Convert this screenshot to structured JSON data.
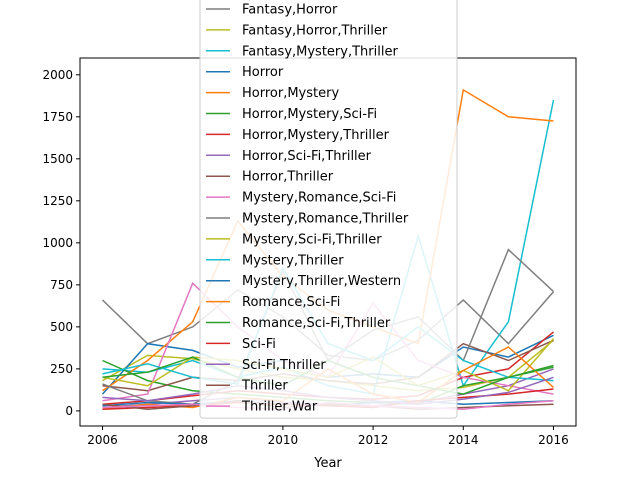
{
  "chart_data": {
    "type": "line",
    "title": "",
    "xlabel": "Year",
    "ylabel": "",
    "xlim": [
      2005.5,
      2016.5
    ],
    "ylim": [
      -90,
      2100
    ],
    "x": [
      2006,
      2007,
      2008,
      2009,
      2010,
      2011,
      2012,
      2013,
      2014,
      2015,
      2016
    ],
    "x_ticks": [
      2006,
      2008,
      2010,
      2012,
      2014,
      2016
    ],
    "y_ticks": [
      0,
      250,
      500,
      750,
      1000,
      1250,
      1500,
      1750,
      2000
    ],
    "grid": false,
    "legend_position": "upper-center",
    "series": [
      {
        "name": "Fantasy,Horror",
        "color": "#7f7f7f",
        "values": [
          660,
          400,
          500,
          720,
          560,
          330,
          300,
          420,
          660,
          400,
          710
        ]
      },
      {
        "name": "Fantasy,Horror,Thriller",
        "color": "#bcbd22",
        "values": [
          180,
          330,
          310,
          250,
          200,
          180,
          150,
          120,
          140,
          200,
          420
        ]
      },
      {
        "name": "Fantasy,Mystery,Thriller",
        "color": "#17becf",
        "values": [
          250,
          230,
          300,
          200,
          260,
          150,
          100,
          1040,
          150,
          530,
          1850
        ]
      },
      {
        "name": "Horror",
        "color": "#1f77b4",
        "values": [
          100,
          400,
          360,
          260,
          300,
          200,
          220,
          200,
          380,
          320,
          450
        ]
      },
      {
        "name": "Horror,Mystery",
        "color": "#ff7f0e",
        "values": [
          120,
          300,
          530,
          1130,
          800,
          600,
          500,
          400,
          1910,
          1750,
          1725
        ]
      },
      {
        "name": "Horror,Mystery,Sci-Fi",
        "color": "#2ca02c",
        "values": [
          300,
          180,
          120,
          100,
          80,
          60,
          50,
          40,
          150,
          200,
          260
        ]
      },
      {
        "name": "Horror,Mystery,Thriller",
        "color": "#d62728",
        "values": [
          40,
          60,
          90,
          120,
          100,
          80,
          70,
          90,
          200,
          250,
          470
        ]
      },
      {
        "name": "Horror,Sci-Fi,Thriller",
        "color": "#9467bd",
        "values": [
          20,
          40,
          60,
          80,
          50,
          40,
          30,
          50,
          100,
          150,
          250
        ]
      },
      {
        "name": "Horror,Thriller",
        "color": "#8c564b",
        "values": [
          150,
          120,
          200,
          180,
          220,
          180,
          160,
          200,
          400,
          300,
          420
        ]
      },
      {
        "name": "Mystery,Romance,Sci-Fi",
        "color": "#e377c2",
        "values": [
          60,
          100,
          760,
          500,
          300,
          200,
          640,
          300,
          200,
          150,
          100
        ]
      },
      {
        "name": "Mystery,Romance,Thriller",
        "color": "#7f7f7f",
        "values": [
          160,
          60,
          40,
          180,
          830,
          300,
          480,
          560,
          300,
          960,
          710
        ]
      },
      {
        "name": "Mystery,Sci-Fi,Thriller",
        "color": "#bcbd22",
        "values": [
          200,
          150,
          320,
          300,
          250,
          200,
          320,
          150,
          240,
          120,
          430
        ]
      },
      {
        "name": "Mystery,Thriller",
        "color": "#17becf",
        "values": [
          220,
          280,
          200,
          160,
          850,
          400,
          300,
          500,
          300,
          200,
          180
        ]
      },
      {
        "name": "Mystery,Thriller,Western",
        "color": "#1f77b4",
        "values": [
          30,
          50,
          40,
          60,
          40,
          30,
          50,
          60,
          40,
          50,
          60
        ]
      },
      {
        "name": "Romance,Sci-Fi",
        "color": "#ff7f0e",
        "values": [
          10,
          40,
          20,
          80,
          60,
          250,
          100,
          50,
          240,
          380,
          140
        ]
      },
      {
        "name": "Romance,Sci-Fi,Thriller",
        "color": "#2ca02c",
        "values": [
          200,
          230,
          320,
          200,
          150,
          300,
          200,
          150,
          100,
          200,
          270
        ]
      },
      {
        "name": "Sci-Fi",
        "color": "#d62728",
        "values": [
          10,
          20,
          30,
          50,
          40,
          30,
          20,
          60,
          80,
          100,
          130
        ]
      },
      {
        "name": "Sci-Fi,Thriller",
        "color": "#9467bd",
        "values": [
          80,
          60,
          100,
          150,
          120,
          80,
          60,
          40,
          70,
          110,
          200
        ]
      },
      {
        "name": "Thriller",
        "color": "#8c564b",
        "values": [
          40,
          10,
          30,
          60,
          20,
          40,
          30,
          10,
          20,
          30,
          40
        ]
      },
      {
        "name": "Thriller,War",
        "color": "#e377c2",
        "values": [
          20,
          30,
          40,
          20,
          10,
          50,
          30,
          20,
          10,
          40,
          60
        ]
      }
    ]
  }
}
